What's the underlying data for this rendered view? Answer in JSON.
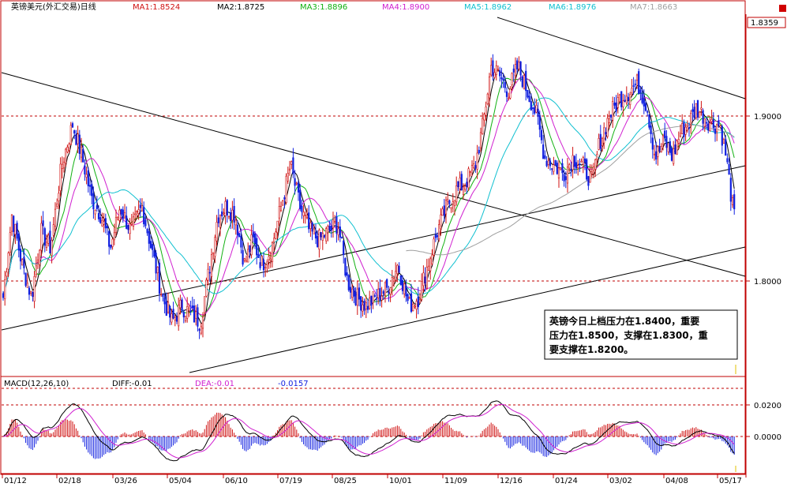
{
  "title": "英镑美元(外汇交易)日线",
  "ma_legend": [
    {
      "label": "MA1:1.8524",
      "color": "#d01010"
    },
    {
      "label": "MA2:1.8725",
      "color": "#000000"
    },
    {
      "label": "MA3:1.8896",
      "color": "#10b010"
    },
    {
      "label": "MA4:1.8900",
      "color": "#d020d0"
    },
    {
      "label": "MA5:1.8962",
      "color": "#10c0d0"
    },
    {
      "label": "MA6:1.8976",
      "color": "#10c0d0"
    },
    {
      "label": "MA7:1.8663",
      "color": "#a0a0a0"
    }
  ],
  "price_axis": {
    "labels": [
      "1.8359",
      "1.9000",
      "1.8000"
    ]
  },
  "macd_header": {
    "name": "MACD(12,26,10)",
    "diff": "DIFF:-0.01",
    "dea": "DEA:-0.01",
    "macd": "-0.0157"
  },
  "macd_axis": {
    "labels": [
      "0.0200",
      "0.0000"
    ]
  },
  "date_labels": [
    "01/12",
    "02/18",
    "03/26",
    "05/04",
    "06/10",
    "07/19",
    "08/25",
    "10/01",
    "11/09",
    "12/16",
    "01/24",
    "03/02",
    "04/08",
    "05/17"
  ],
  "annotation": {
    "line1": "英镑今日上档压力在1.8400，重要",
    "line2": "压力在1.8500，支撑在1.8300，重",
    "line3": "要支撑在1.8200。"
  },
  "colors": {
    "up": "#d01010",
    "down": "#1020e0",
    "ref_line": "#c00000",
    "macd_pos": "#d01010",
    "macd_neg": "#1020e0"
  },
  "chart_data": [
    {
      "type": "line",
      "title": "英镑美元(外汇交易)日线",
      "description": "Daily GBP/USD candlestick price with moving averages; values approximated from the chart",
      "ylim": [
        1.765,
        1.955
      ],
      "reference_lines": [
        1.9,
        1.8
      ],
      "x": [
        "01/12",
        "02/18",
        "03/26",
        "05/04",
        "06/10",
        "07/19",
        "08/25",
        "10/01",
        "11/09",
        "12/16",
        "01/24",
        "03/02",
        "04/08",
        "05/17"
      ],
      "series": [
        {
          "name": "Close",
          "values": [
            1.79,
            1.895,
            1.83,
            1.78,
            1.845,
            1.865,
            1.78,
            1.79,
            1.885,
            1.93,
            1.875,
            1.915,
            1.905,
            1.836
          ]
        }
      ]
    },
    {
      "type": "bar",
      "title": "MACD(12,26,10)",
      "ylim": [
        -0.012,
        0.024
      ],
      "x": [
        "01/12",
        "02/18",
        "03/26",
        "05/04",
        "06/10",
        "07/19",
        "08/25",
        "10/01",
        "11/09",
        "12/16",
        "01/24",
        "03/02",
        "04/08",
        "05/17"
      ],
      "series": [
        {
          "name": "DIFF",
          "values": [
            0.002,
            0.01,
            0.002,
            -0.006,
            0.008,
            0.004,
            -0.005,
            -0.002,
            0.012,
            0.014,
            -0.004,
            0.006,
            0.004,
            -0.01
          ]
        },
        {
          "name": "DEA",
          "values": [
            0.001,
            0.008,
            0.003,
            -0.004,
            0.006,
            0.004,
            -0.003,
            -0.002,
            0.008,
            0.013,
            -0.002,
            0.005,
            0.004,
            -0.01
          ]
        }
      ]
    }
  ]
}
